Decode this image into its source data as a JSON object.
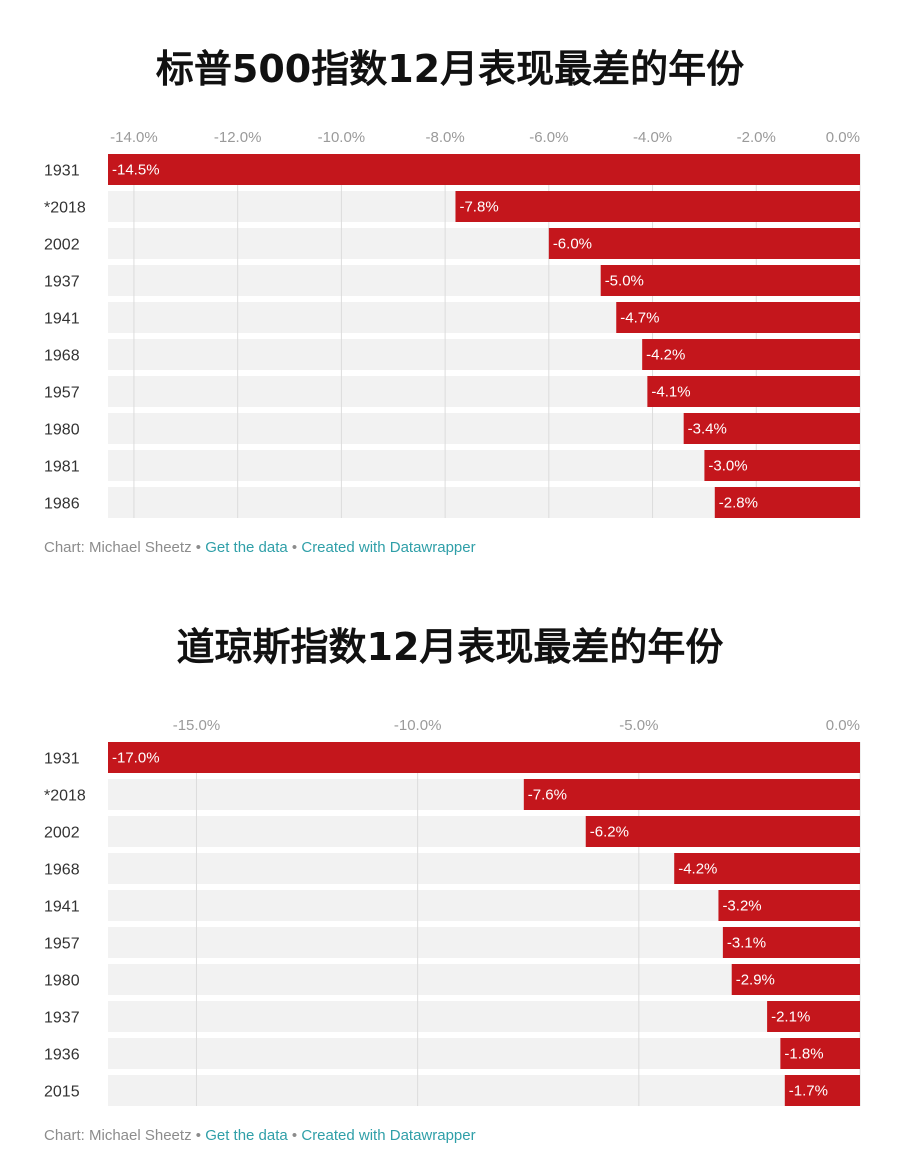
{
  "colors": {
    "bar": "#c4161c",
    "track": "#f2f2f2",
    "grid": "#dcdcdc",
    "link": "#2f9fa8"
  },
  "chart_data": [
    {
      "type": "bar",
      "orientation": "horizontal",
      "title": "标普500指数12月表现最差的年份",
      "categories": [
        "1931",
        "*2018",
        "2002",
        "1937",
        "1941",
        "1968",
        "1957",
        "1980",
        "1981",
        "1986"
      ],
      "values": [
        -14.5,
        -7.8,
        -6.0,
        -5.0,
        -4.7,
        -4.2,
        -4.1,
        -3.4,
        -3.0,
        -2.8
      ],
      "value_labels": [
        "-14.5%",
        "-7.8%",
        "-6.0%",
        "-5.0%",
        "-4.7%",
        "-4.2%",
        "-4.1%",
        "-3.4%",
        "-3.0%",
        "-2.8%"
      ],
      "xlim": [
        -14.5,
        0
      ],
      "ticks": [
        -14,
        -12,
        -10,
        -8,
        -6,
        -4,
        -2,
        0
      ],
      "tick_labels": [
        "-14.0%",
        "-12.0%",
        "-10.0%",
        "-8.0%",
        "-6.0%",
        "-4.0%",
        "-2.0%",
        "0.0%"
      ],
      "axis_position": "top",
      "grid": true,
      "footer": {
        "credit": "Chart: Michael Sheetz",
        "get_data": "Get the data",
        "created_with": "Created with Datawrapper",
        "separator": "•"
      }
    },
    {
      "type": "bar",
      "orientation": "horizontal",
      "title": "道琼斯指数12月表现最差的年份",
      "categories": [
        "1931",
        "*2018",
        "2002",
        "1968",
        "1941",
        "1957",
        "1980",
        "1937",
        "1936",
        "2015"
      ],
      "values": [
        -17.0,
        -7.6,
        -6.2,
        -4.2,
        -3.2,
        -3.1,
        -2.9,
        -2.1,
        -1.8,
        -1.7
      ],
      "value_labels": [
        "-17.0%",
        "-7.6%",
        "-6.2%",
        "-4.2%",
        "-3.2%",
        "-3.1%",
        "-2.9%",
        "-2.1%",
        "-1.8%",
        "-1.7%"
      ],
      "xlim": [
        -17.0,
        0
      ],
      "ticks": [
        -15,
        -10,
        -5,
        0
      ],
      "tick_labels": [
        "-15.0%",
        "-10.0%",
        "-5.0%",
        "0.0%"
      ],
      "axis_position": "top",
      "grid": true,
      "footer": {
        "credit": "Chart: Michael Sheetz",
        "get_data": "Get the data",
        "created_with": "Created with Datawrapper",
        "separator": "•"
      }
    }
  ]
}
